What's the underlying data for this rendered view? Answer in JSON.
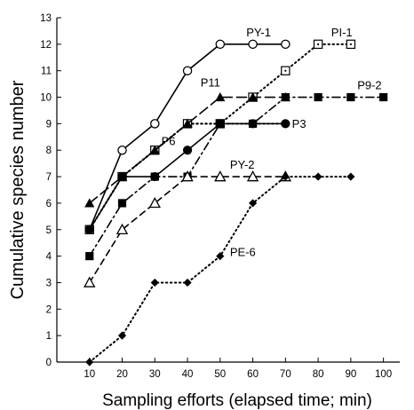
{
  "chart_data": {
    "type": "line",
    "title": "",
    "xlabel": "Sampling efforts (elapsed time; min)",
    "ylabel": "Cumulative species number",
    "xlim": [
      0,
      105
    ],
    "ylim": [
      0,
      13
    ],
    "x_ticks": [
      10,
      20,
      30,
      40,
      50,
      60,
      70,
      80,
      90,
      100
    ],
    "y_ticks": [
      0,
      1,
      2,
      3,
      4,
      5,
      6,
      7,
      8,
      9,
      10,
      11,
      12,
      13
    ],
    "grid": false,
    "legend": "none",
    "series": [
      {
        "name": "PY-1",
        "x": [
          10,
          20,
          30,
          40,
          50,
          60,
          70
        ],
        "y": [
          5,
          8,
          9,
          11,
          12,
          12,
          12
        ],
        "color": "#000000",
        "dash": "solid",
        "marker": "circle-open",
        "label_at": {
          "x": 58,
          "y": 12.3
        }
      },
      {
        "name": "PI-1",
        "x": [
          10,
          20,
          30,
          40,
          50,
          60,
          70,
          80,
          90
        ],
        "y": [
          5,
          7,
          8,
          9,
          9,
          10,
          11,
          12,
          12
        ],
        "color": "#000000",
        "dash": "dot",
        "marker": "square-dot",
        "label_at": {
          "x": 84,
          "y": 12.3
        }
      },
      {
        "name": "P11",
        "x": [
          10,
          20,
          30,
          40,
          50,
          60,
          70
        ],
        "y": [
          6,
          7,
          8,
          9,
          10,
          10,
          10
        ],
        "color": "#000000",
        "dash": "longdash",
        "marker": "triangle-filled",
        "label_at": {
          "x": 44,
          "y": 10.4
        }
      },
      {
        "name": "P9-2",
        "x": [
          10,
          20,
          30,
          40,
          50,
          60,
          70,
          80,
          90,
          100
        ],
        "y": [
          4,
          6,
          7,
          7,
          9,
          9,
          10,
          10,
          10,
          10
        ],
        "color": "#000000",
        "dash": "dashdot",
        "marker": "square-filled",
        "label_at": {
          "x": 92,
          "y": 10.3
        }
      },
      {
        "name": "P3",
        "x": [
          10,
          20,
          30,
          40,
          50,
          60,
          70
        ],
        "y": [
          5,
          7,
          7,
          8,
          9,
          9,
          9
        ],
        "color": "#000000",
        "dash": "solid",
        "marker": "circle-filled",
        "label_at": {
          "x": 72,
          "y": 8.85
        }
      },
      {
        "name": "P6",
        "x": [
          10,
          20,
          30,
          40,
          50,
          60,
          70
        ],
        "y": [
          5,
          7,
          8,
          9,
          9,
          9,
          9
        ],
        "color": "#000000",
        "dash": "dot",
        "marker": "none",
        "label_at": {
          "x": 32,
          "y": 8.2
        }
      },
      {
        "name": "PY-2",
        "x": [
          10,
          20,
          30,
          40,
          50,
          60,
          70
        ],
        "y": [
          3,
          5,
          6,
          7,
          7,
          7,
          7
        ],
        "color": "#000000",
        "dash": "dash",
        "marker": "triangle-open",
        "label_at": {
          "x": 53,
          "y": 7.3
        }
      },
      {
        "name": "PE-6",
        "x": [
          10,
          20,
          30,
          40,
          50,
          60,
          70,
          80,
          90
        ],
        "y": [
          0,
          1,
          3,
          3,
          4,
          6,
          7,
          7,
          7
        ],
        "color": "#000000",
        "dash": "dot",
        "marker": "diamond-filled",
        "label_at": {
          "x": 53,
          "y": 4.0
        }
      }
    ]
  }
}
